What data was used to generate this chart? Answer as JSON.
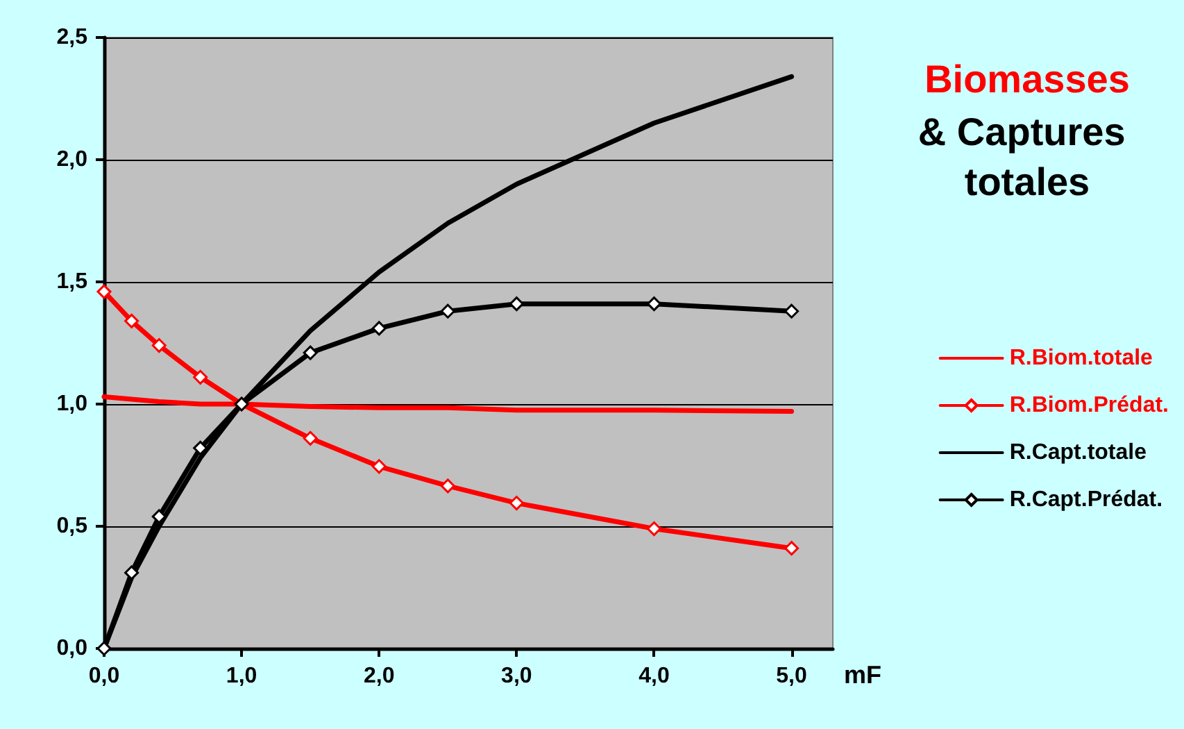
{
  "chart_data": {
    "type": "line",
    "title": "Biomasses",
    "subtitle": "& Captures totales",
    "xlabel": "mF",
    "x": [
      0,
      0.2,
      0.4,
      0.7,
      1,
      1.5,
      2,
      2.5,
      3,
      4,
      5
    ],
    "series": [
      {
        "name": "R.Biom.totale",
        "color": "#ff0000",
        "marker": "none",
        "values": [
          1.03,
          1.02,
          1.01,
          1.0,
          1.0,
          0.99,
          0.985,
          0.985,
          0.975,
          0.975,
          0.97
        ]
      },
      {
        "name": "R.Biom.Prédat.",
        "color": "#ff0000",
        "marker": "diamond",
        "values": [
          1.46,
          1.34,
          1.24,
          1.11,
          1.0,
          0.86,
          0.745,
          0.665,
          0.595,
          0.49,
          0.41
        ]
      },
      {
        "name": "R.Capt.totale",
        "color": "#000000",
        "marker": "none",
        "values": [
          0,
          0.29,
          0.5,
          0.78,
          1.0,
          1.3,
          1.54,
          1.74,
          1.9,
          2.15,
          2.34
        ]
      },
      {
        "name": "R.Capt.Prédat.",
        "color": "#000000",
        "marker": "diamond",
        "values": [
          0,
          0.31,
          0.54,
          0.82,
          1.0,
          1.21,
          1.31,
          1.38,
          1.41,
          1.41,
          1.38
        ]
      }
    ],
    "xlim": [
      0,
      5.3
    ],
    "xticks": [
      {
        "value": 0,
        "label": "0,0"
      },
      {
        "value": 1,
        "label": "1,0"
      },
      {
        "value": 2,
        "label": "2,0"
      },
      {
        "value": 3,
        "label": "3,0"
      },
      {
        "value": 4,
        "label": "4,0"
      },
      {
        "value": 5,
        "label": "5,0"
      }
    ],
    "ylim": [
      0,
      2.5
    ],
    "yticks": [
      {
        "value": 0,
        "label": "0,0"
      },
      {
        "value": 0.5,
        "label": "0,5"
      },
      {
        "value": 1,
        "label": "1,0"
      },
      {
        "value": 1.5,
        "label": "1,5"
      },
      {
        "value": 2,
        "label": "2,0"
      },
      {
        "value": 2.5,
        "label": "2,5"
      }
    ],
    "grid": "y",
    "legend": "right",
    "line_style": "solid"
  }
}
